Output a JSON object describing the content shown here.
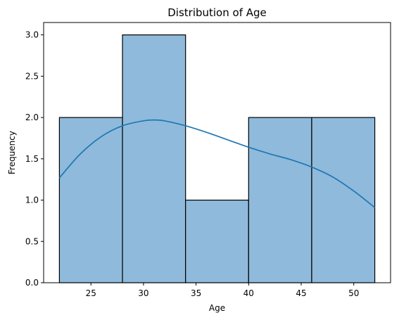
{
  "chart_data": {
    "type": "bar",
    "title": "Distribution of Age",
    "xlabel": "Age",
    "ylabel": "Frequency",
    "xlim": [
      20.5,
      53.5
    ],
    "ylim": [
      0,
      3.15
    ],
    "xticks": [
      25,
      30,
      35,
      40,
      45,
      50
    ],
    "yticks": [
      "0.0",
      "0.5",
      "1.0",
      "1.5",
      "2.0",
      "2.5",
      "3.0"
    ],
    "bins": [
      {
        "start": 22,
        "end": 28,
        "count": 2
      },
      {
        "start": 28,
        "end": 34,
        "count": 3
      },
      {
        "start": 34,
        "end": 40,
        "count": 1
      },
      {
        "start": 40,
        "end": 46,
        "count": 2
      },
      {
        "start": 46,
        "end": 52,
        "count": 2
      }
    ],
    "kde": {
      "x": [
        22,
        24,
        26,
        28,
        30,
        31,
        32,
        34,
        36,
        38,
        40,
        42,
        44,
        46,
        48,
        50,
        52
      ],
      "y": [
        1.27,
        1.56,
        1.77,
        1.9,
        1.96,
        1.97,
        1.96,
        1.9,
        1.82,
        1.73,
        1.64,
        1.56,
        1.49,
        1.4,
        1.28,
        1.11,
        0.91
      ]
    },
    "bar_color": "#8fbadb",
    "bar_edge_color": "#000000",
    "kde_color": "#1f77b4"
  }
}
